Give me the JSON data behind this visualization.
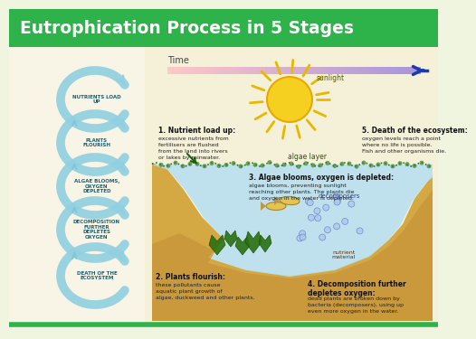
{
  "title": "Eutrophication Process in 5 Stages",
  "title_color": "#ffffff",
  "title_bg": "#2db34a",
  "bg_color": "#f0f5e0",
  "time_label": "Time",
  "arrow_color": "#1a3ab0",
  "cycle_labels": [
    "NUTRIENTS LOAD\nUP",
    "PLANTS\nFLOURISH",
    "ALGAE BLOOMS,\nOXYGEN\nDEPLETED",
    "DECOMPOSITION\nFURTHER\nDEPLETES\nOXYGEN",
    "DEATH OF THE\nECOSYSTEM"
  ],
  "stage_titles": [
    "1. Nutrient load up:",
    "2. Plants flourish:",
    "3. Algae blooms, oxygen is depleted:",
    "4. Decomposition further\ndepletes oxygen:",
    "5. Death of the ecosystem:"
  ],
  "stage_texts": [
    "excessive nutrients from\nfertilisers are flushed\nfrom the land into rivers\nor lakes by rainwater.",
    "these pollutants cause\naquatic plant growth of\nalgae, duckweed and other plants.",
    "algae blooms, preventing sunlight\nreaching other plants. The plants die\nand oxygen in the water is depleted.",
    "dead plants are broken down by\nbacteria (decomposers), using up\neven more oxygen in the water.",
    "oxygen levels reach a point\nwhere no life is possible.\nFish and other organisms die."
  ],
  "sunlight_label": "sunlight",
  "algae_label": "algae layer",
  "decomposers_label": "decomposers",
  "nutrient_label": "nutrient\nmaterial",
  "water_color": "#b8e0f0",
  "water_color2": "#d0eef8",
  "ground_color": "#d4a843",
  "ground_color2": "#c89030",
  "algae_color": "#4a7a1a",
  "sun_color": "#f5d020",
  "sun_ray_color": "#e8b800",
  "bottom_line_color": "#2db34a",
  "cycle_arc_color": "#90d0e0",
  "cycle_text_color": "#1a6070",
  "connect_arrow_color": "#80c8d8"
}
